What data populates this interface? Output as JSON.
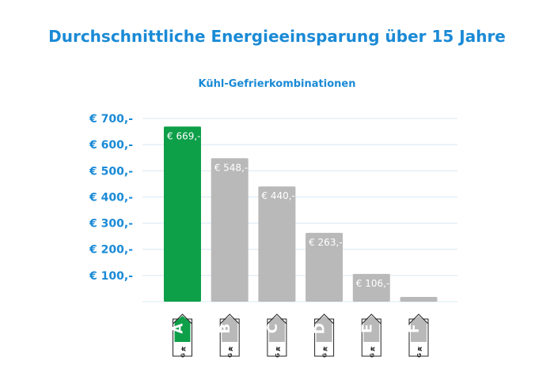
{
  "title": "Durchschnittliche Energieeinsparung über 15 Jahre",
  "subtitle": "Kühl-Gefrierkombinationen",
  "colors": {
    "accent": "#1a8ad6",
    "highlight_bar": "#0e9f49",
    "bar": "#b9b9b9",
    "grid": "#d8e8f4"
  },
  "chart_data": {
    "type": "bar",
    "title": "Durchschnittliche Energieeinsparung über 15 Jahre",
    "subtitle": "Kühl-Gefrierkombinationen",
    "categories": [
      "A",
      "B",
      "C",
      "D",
      "E",
      "F"
    ],
    "values": [
      669,
      548,
      440,
      263,
      106,
      18
    ],
    "value_labels": [
      "€ 669,-",
      "€ 548,-",
      "€ 440,-",
      "€ 263,-",
      "€ 106,-",
      ""
    ],
    "highlight": "A",
    "ylim": [
      0,
      700
    ],
    "yticks": [
      100,
      200,
      300,
      400,
      500,
      600,
      700
    ],
    "ytick_labels": [
      "€ 100,-",
      "€ 200,-",
      "€ 300,-",
      "€ 400,-",
      "€ 500,-",
      "€ 600,-",
      "€ 700,-"
    ],
    "energy_label_scale": [
      "A",
      "G"
    ],
    "grid": true
  }
}
